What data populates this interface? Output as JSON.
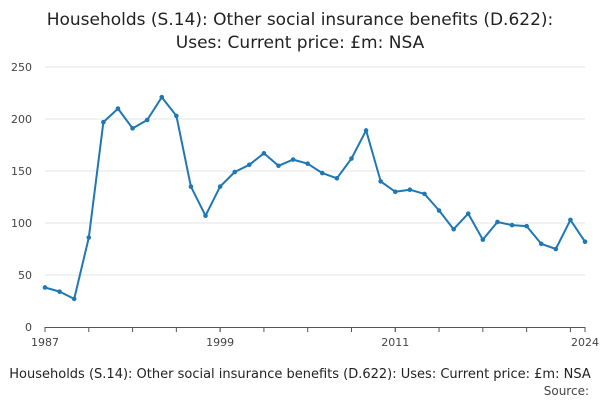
{
  "chart_data": {
    "type": "line",
    "title_lines": [
      "Households (S.14): Other social insurance benefits (D.622):",
      "Uses: Current price: £m: NSA"
    ],
    "footer": "Households (S.14): Other social insurance benefits (D.622): Uses: Current price: £m: NSA",
    "source_label": "Source:",
    "xlim": [
      1987,
      2024
    ],
    "ylim": [
      0,
      250
    ],
    "x_ticks": [
      "1987",
      "1999",
      "2011",
      "2024"
    ],
    "y_ticks": [
      "0",
      "50",
      "100",
      "150",
      "200",
      "250"
    ],
    "grid": true,
    "colors": {
      "line": "#1f77b4",
      "grid": "#e6e6e6",
      "axis": "#555555"
    },
    "x": [
      1987,
      1988,
      1989,
      1990,
      1991,
      1992,
      1993,
      1994,
      1995,
      1996,
      1997,
      1998,
      1999,
      2000,
      2001,
      2002,
      2003,
      2004,
      2005,
      2006,
      2007,
      2008,
      2009,
      2010,
      2011,
      2012,
      2013,
      2014,
      2015,
      2016,
      2017,
      2018,
      2019,
      2020,
      2021,
      2022,
      2023,
      2024
    ],
    "values": [
      38,
      34,
      27,
      86,
      197,
      210,
      191,
      199,
      221,
      203,
      135,
      107,
      135,
      149,
      156,
      167,
      155,
      161,
      157,
      148,
      143,
      162,
      189,
      140,
      130,
      132,
      128,
      112,
      94,
      109,
      84,
      101,
      98,
      97,
      80,
      75,
      103,
      82
    ]
  }
}
